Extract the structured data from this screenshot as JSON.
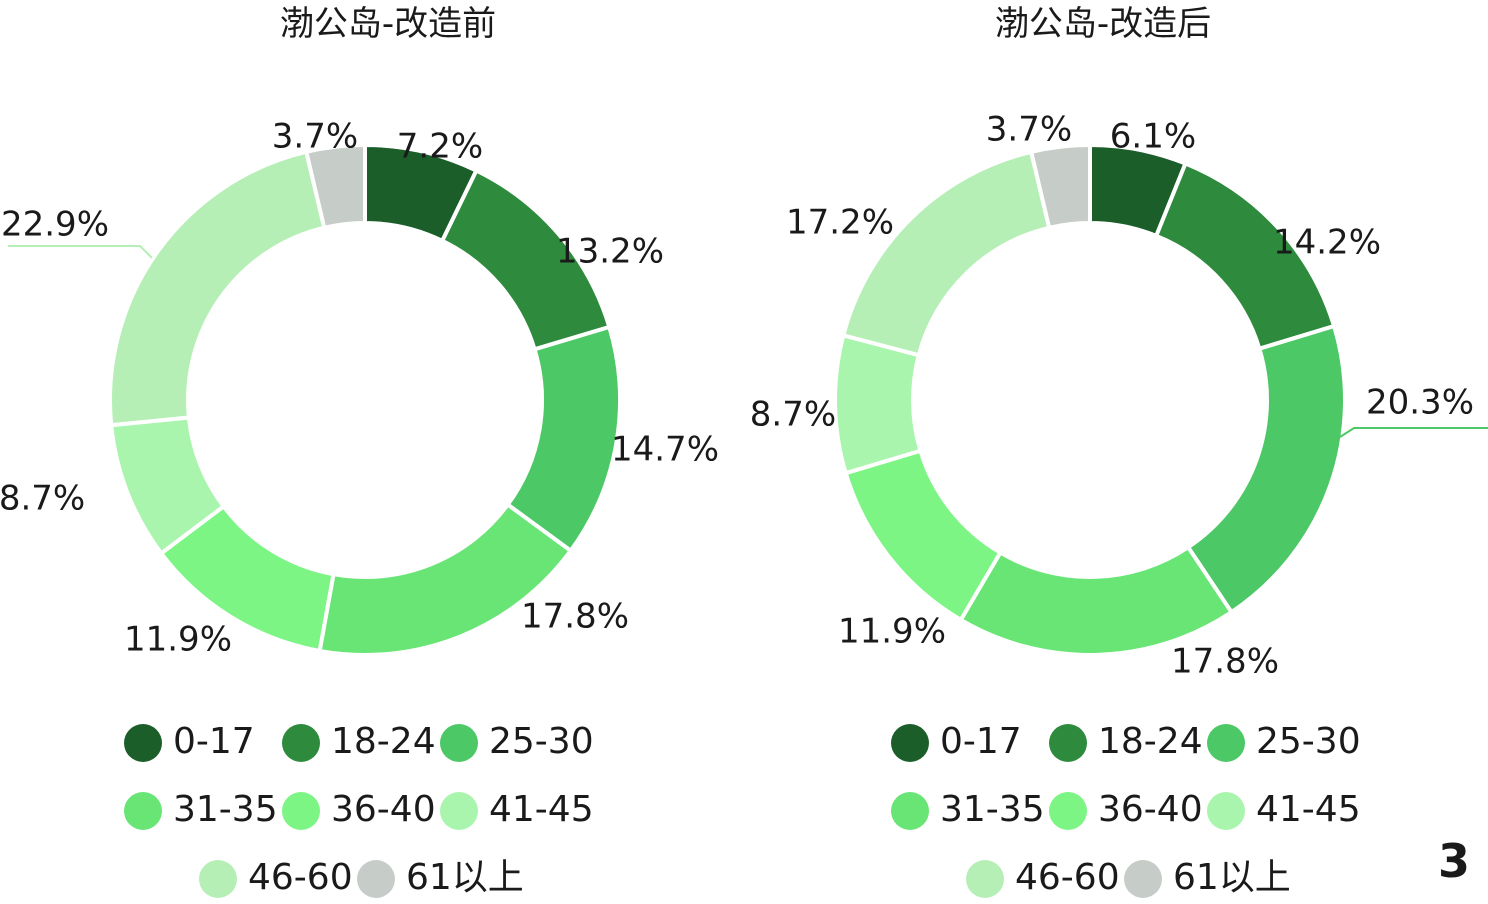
{
  "page_number": "3",
  "chart_data": [
    {
      "type": "pie",
      "variant": "donut",
      "title": "渤公岛-改造前",
      "categories": [
        "0-17",
        "18-24",
        "25-30",
        "31-35",
        "36-40",
        "41-45",
        "46-60",
        "61以上"
      ],
      "values": [
        7.2,
        13.2,
        14.7,
        17.8,
        11.9,
        8.7,
        22.9,
        3.7
      ],
      "labels": [
        "7.2%",
        "13.2%",
        "14.7%",
        "17.8%",
        "11.9%",
        "8.7%",
        "22.9%",
        "3.7%"
      ],
      "colors": [
        "#1b5e2a",
        "#2e8b3d",
        "#4cc866",
        "#68e575",
        "#7cf585",
        "#aaf5ad",
        "#b5efb6",
        "#c6ccc8"
      ],
      "legend_position": "bottom"
    },
    {
      "type": "pie",
      "variant": "donut",
      "title": "渤公岛-改造后",
      "categories": [
        "0-17",
        "18-24",
        "25-30",
        "31-35",
        "36-40",
        "41-45",
        "46-60",
        "61以上"
      ],
      "values": [
        6.1,
        14.2,
        20.3,
        17.8,
        11.9,
        8.7,
        17.2,
        3.7
      ],
      "labels": [
        "6.1%",
        "14.2%",
        "20.3%",
        "17.8%",
        "11.9%",
        "8.7%",
        "17.2%",
        "3.7%"
      ],
      "colors": [
        "#1b5e2a",
        "#2e8b3d",
        "#4cc866",
        "#68e575",
        "#7cf585",
        "#aaf5ad",
        "#b5efb6",
        "#c6ccc8"
      ],
      "legend_position": "bottom"
    }
  ]
}
